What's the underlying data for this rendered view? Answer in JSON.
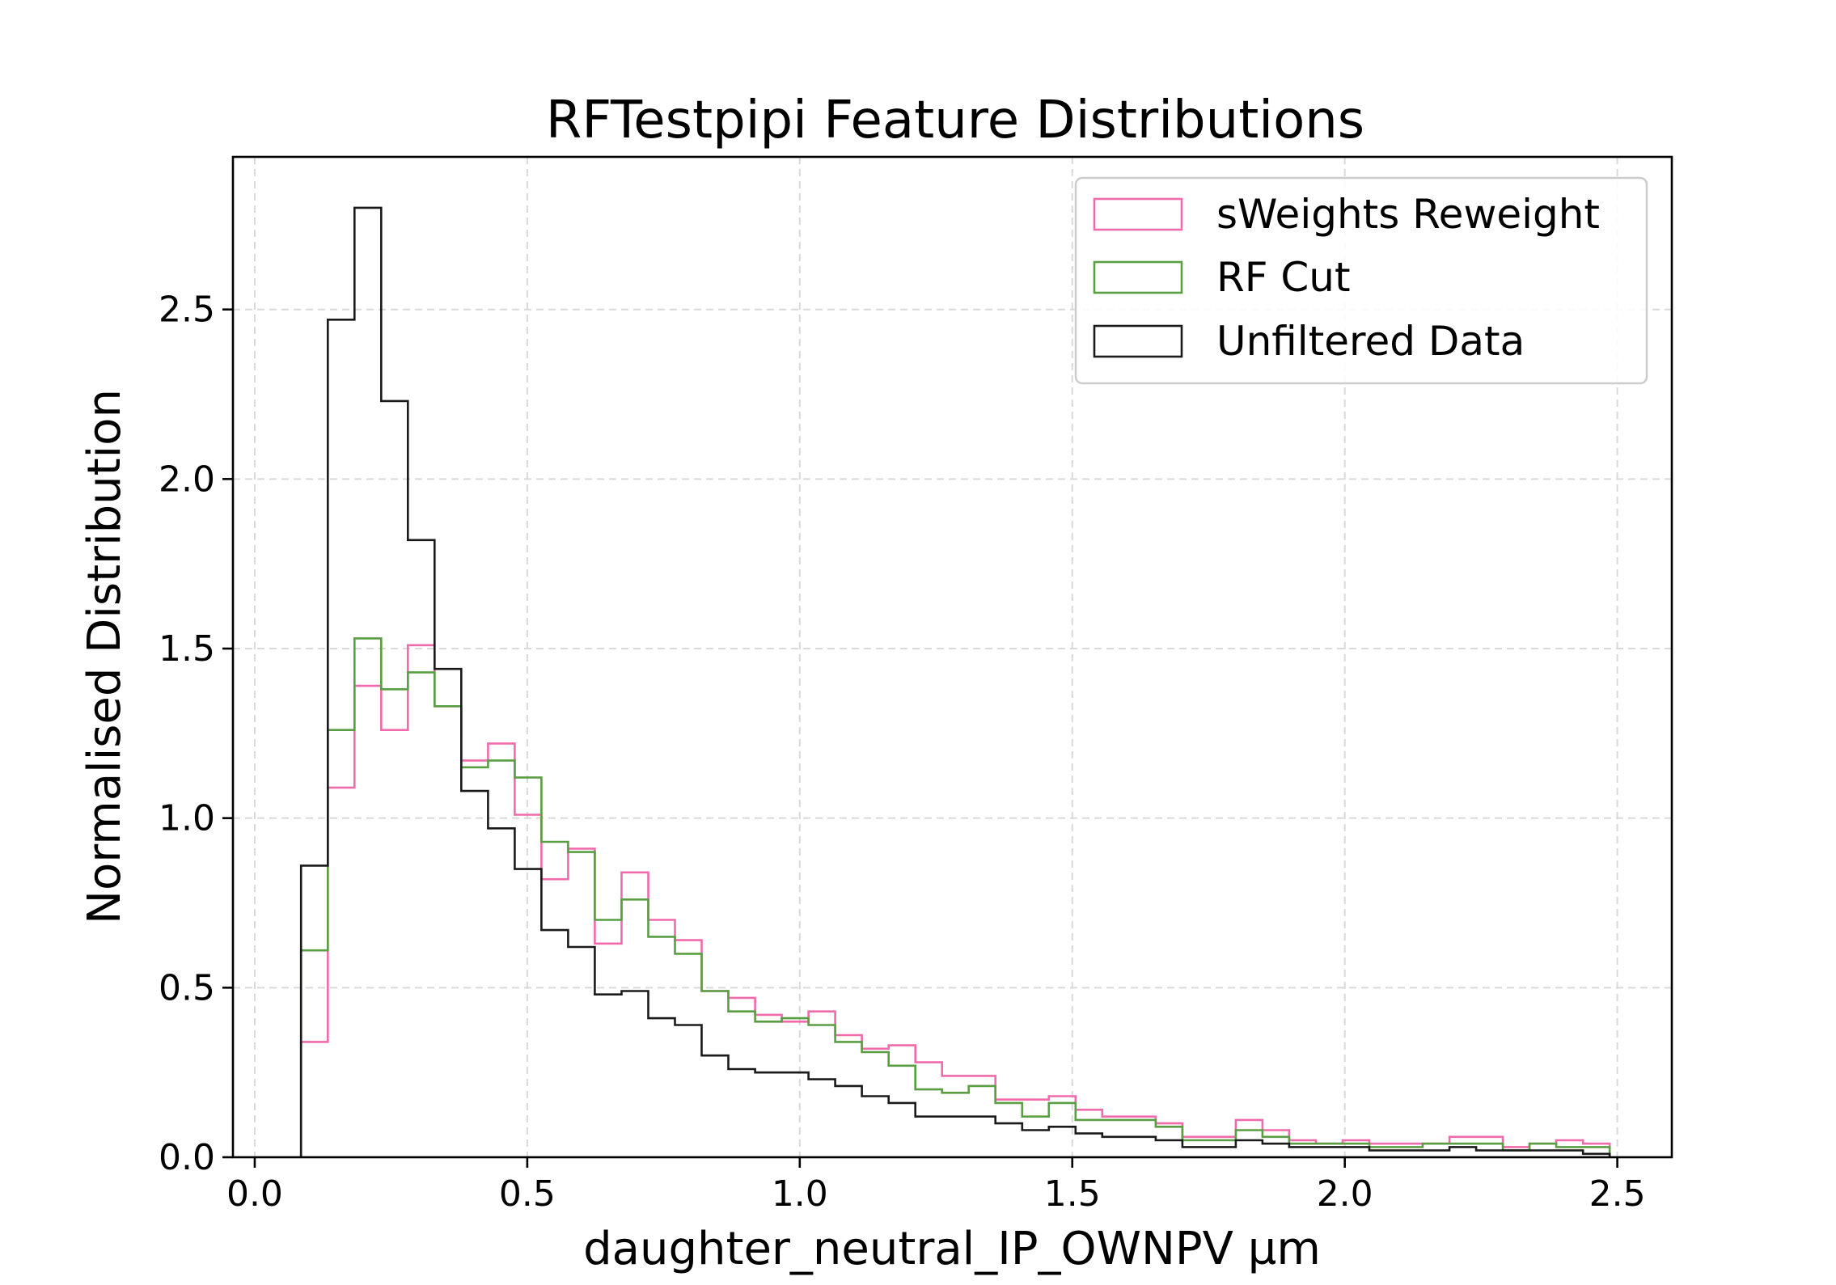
{
  "chart_data": {
    "type": "histogram",
    "title": "RFTestpipi Feature Distributions",
    "xlabel": "daughter_neutral_IP_OWNPV µm",
    "ylabel": "Normalised Distribution",
    "xlim": [
      -0.04,
      2.6
    ],
    "ylim": [
      0,
      2.95
    ],
    "xticks": [
      0.0,
      0.5,
      1.0,
      1.5,
      2.0,
      2.5
    ],
    "xtick_labels": [
      "0.0",
      "0.5",
      "1.0",
      "1.5",
      "2.0",
      "2.5"
    ],
    "yticks": [
      0.0,
      0.5,
      1.0,
      1.5,
      2.0,
      2.5
    ],
    "ytick_labels": [
      "0.0",
      "0.5",
      "1.0",
      "1.5",
      "2.0",
      "2.5"
    ],
    "grid": true,
    "legend_position": "top-right",
    "bin_edges": [
      0.085,
      0.134,
      0.183,
      0.232,
      0.281,
      0.33,
      0.379,
      0.428,
      0.477,
      0.526,
      0.575,
      0.624,
      0.673,
      0.722,
      0.771,
      0.82,
      0.869,
      0.918,
      0.967,
      1.016,
      1.065,
      1.114,
      1.163,
      1.212,
      1.261,
      1.31,
      1.359,
      1.408,
      1.457,
      1.506,
      1.555,
      1.604,
      1.653,
      1.702,
      1.751,
      1.8,
      1.849,
      1.898,
      1.947,
      1.996,
      2.045,
      2.094,
      2.143,
      2.192,
      2.241,
      2.29,
      2.339,
      2.388,
      2.437,
      2.486
    ],
    "series": [
      {
        "name": "sWeights Reweight",
        "color": "#f06bab",
        "values": [
          0.34,
          1.09,
          1.39,
          1.26,
          1.51,
          1.33,
          1.17,
          1.22,
          1.01,
          0.82,
          0.91,
          0.63,
          0.84,
          0.7,
          0.64,
          0.49,
          0.47,
          0.42,
          0.4,
          0.43,
          0.36,
          0.32,
          0.33,
          0.28,
          0.24,
          0.24,
          0.17,
          0.17,
          0.18,
          0.14,
          0.12,
          0.12,
          0.1,
          0.06,
          0.06,
          0.11,
          0.08,
          0.05,
          0.04,
          0.05,
          0.04,
          0.04,
          0.04,
          0.06,
          0.06,
          0.03,
          0.04,
          0.05,
          0.04
        ]
      },
      {
        "name": "RF Cut",
        "color": "#5a9e44",
        "values": [
          0.61,
          1.26,
          1.53,
          1.38,
          1.43,
          1.33,
          1.15,
          1.17,
          1.12,
          0.93,
          0.9,
          0.7,
          0.76,
          0.65,
          0.6,
          0.49,
          0.43,
          0.4,
          0.41,
          0.39,
          0.34,
          0.31,
          0.27,
          0.2,
          0.19,
          0.21,
          0.16,
          0.12,
          0.16,
          0.11,
          0.11,
          0.11,
          0.09,
          0.05,
          0.05,
          0.08,
          0.06,
          0.04,
          0.04,
          0.04,
          0.03,
          0.03,
          0.04,
          0.04,
          0.04,
          0.02,
          0.04,
          0.03,
          0.03
        ]
      },
      {
        "name": "Unfiltered Data",
        "color": "#1a1a1a",
        "values": [
          0.86,
          2.47,
          2.8,
          2.23,
          1.82,
          1.44,
          1.08,
          0.97,
          0.85,
          0.67,
          0.62,
          0.48,
          0.49,
          0.41,
          0.39,
          0.3,
          0.26,
          0.25,
          0.25,
          0.23,
          0.21,
          0.18,
          0.16,
          0.12,
          0.12,
          0.12,
          0.1,
          0.08,
          0.09,
          0.07,
          0.06,
          0.06,
          0.05,
          0.03,
          0.03,
          0.05,
          0.04,
          0.03,
          0.03,
          0.03,
          0.02,
          0.02,
          0.02,
          0.03,
          0.02,
          0.02,
          0.02,
          0.02,
          0.01
        ]
      }
    ]
  }
}
